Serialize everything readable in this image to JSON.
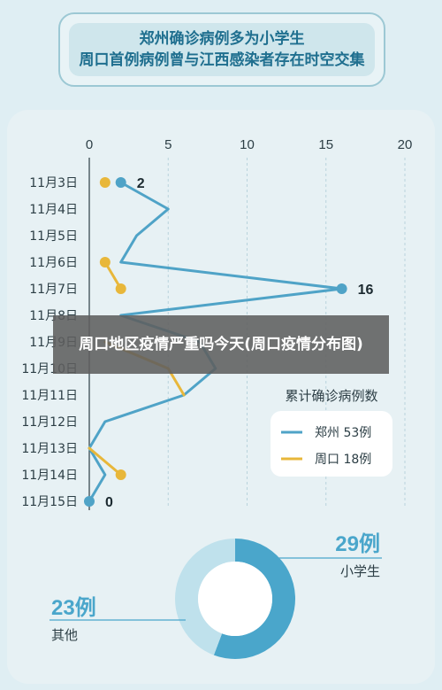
{
  "title": {
    "line1": "郑州确诊病例多为小学生",
    "line2": "周口首例病例曾与江西感染者存在时空交集"
  },
  "overlay_caption": "周口地区疫情严重吗今天(周口疫情分布图)",
  "colors": {
    "zhengzhou": "#4fa3c7",
    "zhoukou": "#e8b73a",
    "pie_primary": "#4aa6cb",
    "pie_secondary": "#bfe1ec",
    "title_text": "#1f6f8f"
  },
  "chart_data": [
    {
      "type": "line",
      "orientation": "horizontal",
      "x_ticks": [
        0,
        5,
        10,
        15,
        20
      ],
      "xlim": [
        0,
        20
      ],
      "categories": [
        "11月3日",
        "11月4日",
        "11月5日",
        "11月6日",
        "11月7日",
        "11月8日",
        "11月9日",
        "11月10日",
        "11月11日",
        "11月12日",
        "11月13日",
        "11月14日",
        "11月15日"
      ],
      "legend_title": "累计确诊病例数",
      "legend_position": "right",
      "grid": "vertical dashed",
      "series": [
        {
          "name": "郑州 53例",
          "color": "#4fa3c7",
          "values": [
            2,
            5,
            3,
            2,
            16,
            2,
            7,
            8,
            6,
            1,
            0,
            1,
            0
          ]
        },
        {
          "name": "周口 18例",
          "color": "#e8b73a",
          "values": [
            1,
            null,
            null,
            1,
            2,
            null,
            1,
            5,
            6,
            null,
            0,
            2,
            null
          ]
        }
      ],
      "annotations": [
        {
          "category": "11月3日",
          "value": 2,
          "label": "2"
        },
        {
          "category": "11月7日",
          "value": 16,
          "label": "16"
        },
        {
          "category": "11月15日",
          "value": 0,
          "label": "0"
        }
      ]
    },
    {
      "type": "pie",
      "style": "donut",
      "slices": [
        {
          "label": "小学生",
          "value": 29,
          "value_label": "29例",
          "color": "#4aa6cb"
        },
        {
          "label": "其他",
          "value": 23,
          "value_label": "23例",
          "color": "#bfe1ec"
        }
      ]
    }
  ]
}
